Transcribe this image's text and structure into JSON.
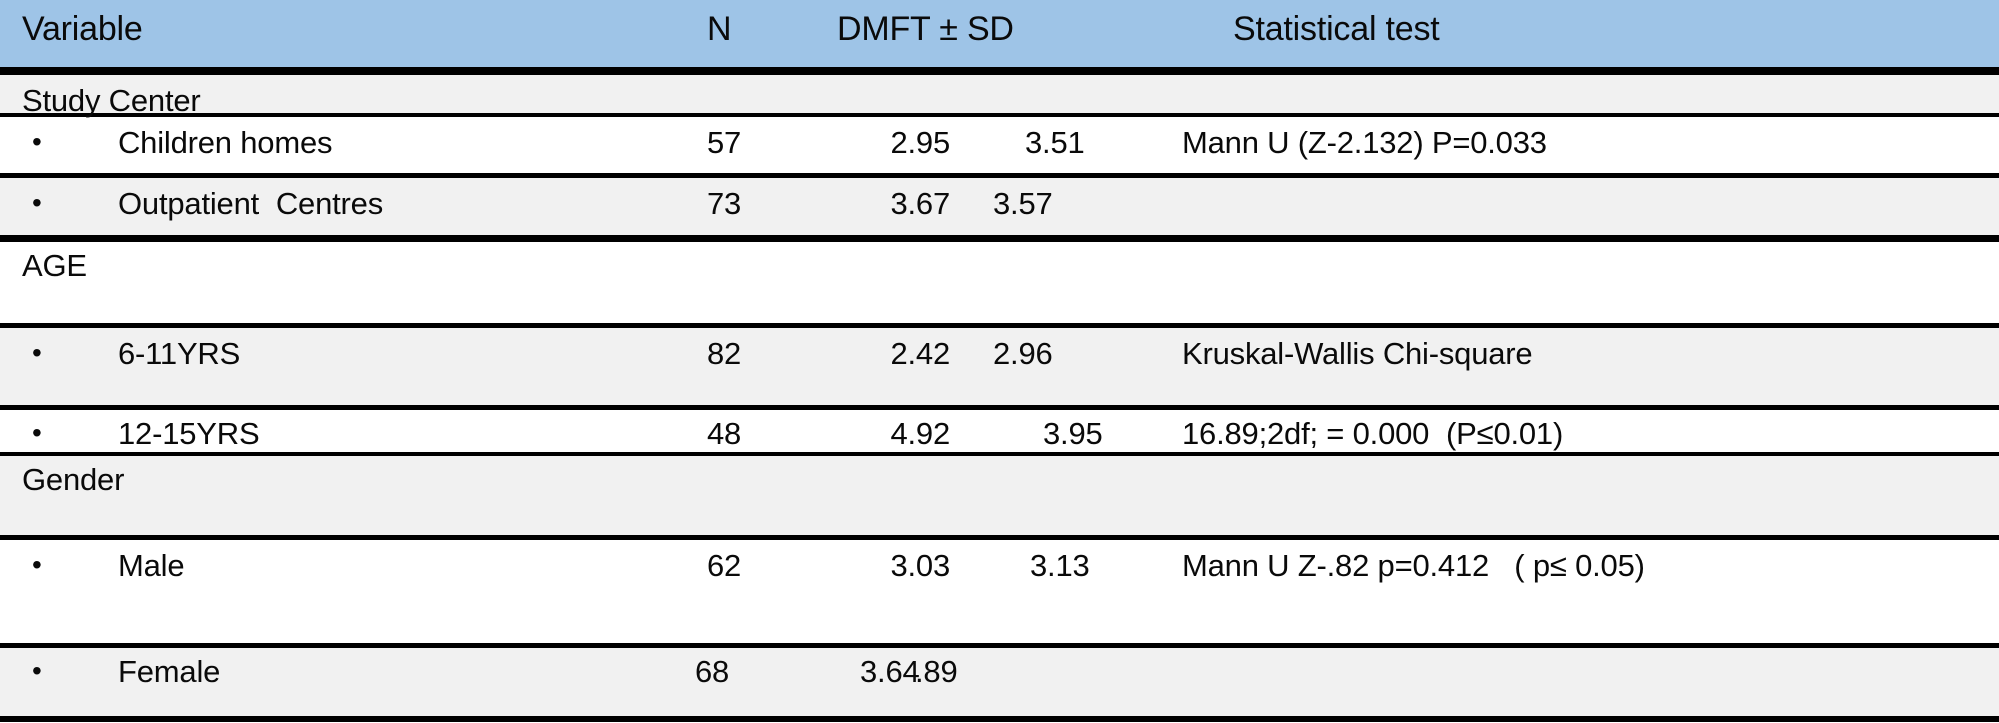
{
  "table": {
    "bullet": "•",
    "colors": {
      "header_bg": "#9EC4E7",
      "stripe_bg": "#F1F1F1",
      "border": "#000000",
      "text": "#0A0A0A"
    },
    "columns": [
      "Variable",
      "N",
      "DMFT ± SD",
      "Statistical test"
    ],
    "rows": [
      {
        "type": "section",
        "label": "Study Center"
      },
      {
        "type": "item",
        "label": "Children homes",
        "n": "57",
        "dmft": "2.95",
        "sd": "3.51",
        "stat": "Mann U (Z-2.132) P=0.033"
      },
      {
        "type": "item",
        "label": "Outpatient  Centres",
        "n": "73",
        "dmft": "3.67",
        "sd": "3.57",
        "stat": ""
      },
      {
        "type": "section",
        "label": "AGE"
      },
      {
        "type": "item",
        "label": "6-11YRS",
        "n": "82",
        "dmft": "2.42",
        "sd": "2.96",
        "stat": "Kruskal-Wallis Chi-square"
      },
      {
        "type": "item",
        "label": "12-15YRS",
        "n": "48",
        "dmft": "4.92",
        "sd": "3.95",
        "stat": "16.89;2df; = 0.000  (P≤0.01)"
      },
      {
        "type": "section",
        "label": "Gender"
      },
      {
        "type": "item",
        "label": "Male",
        "n": "62",
        "dmft": "3.03",
        "sd": "3.13",
        "stat": "Mann U Z-.82 p=0.412   ( p≤ 0.05)"
      },
      {
        "type": "item",
        "label": "Female",
        "n": "68",
        "dmft": "3.64",
        "sd": ".89",
        "stat": ""
      }
    ]
  }
}
